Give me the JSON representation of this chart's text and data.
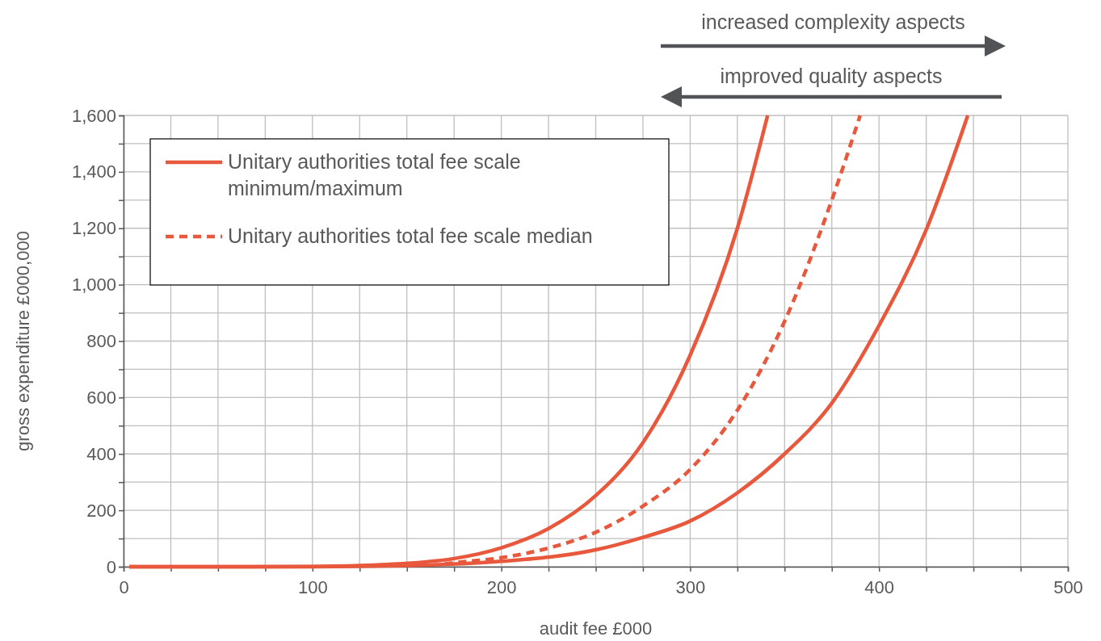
{
  "chart_data": {
    "type": "line",
    "xlabel": "audit fee £000",
    "ylabel": "gross expenditure £000,000",
    "annotations": [
      "increased complexity aspects",
      "improved quality aspects"
    ],
    "xlim": [
      0,
      500
    ],
    "ylim": [
      0,
      1600
    ],
    "xticks": [
      0,
      {
        "value": 25,
        "label": null
      },
      100,
      {
        "value": 50,
        "label": null
      },
      {
        "value": 75,
        "label": null
      },
      {
        "value": 125,
        "label": null
      },
      {
        "value": 150,
        "label": null
      },
      {
        "value": 175,
        "label": null
      },
      200,
      {
        "value": 225,
        "label": null
      },
      {
        "value": 250,
        "label": null
      },
      {
        "value": 275,
        "label": null
      },
      300,
      {
        "value": 325,
        "label": null
      },
      {
        "value": 350,
        "label": null
      },
      {
        "value": 375,
        "label": null
      },
      400,
      {
        "value": 425,
        "label": null
      },
      {
        "value": 450,
        "label": null
      },
      {
        "value": 475,
        "label": null
      },
      500
    ],
    "yticks": [
      0,
      {
        "value": 100,
        "label": null
      },
      200,
      {
        "value": 300,
        "label": null
      },
      400,
      {
        "value": 500,
        "label": null
      },
      600,
      {
        "value": 700,
        "label": null
      },
      800,
      {
        "value": 900,
        "label": null
      },
      {
        "value": 1000,
        "label": "1,000"
      },
      {
        "value": 1100,
        "label": null
      },
      {
        "value": 1200,
        "label": "1,200"
      },
      {
        "value": 1300,
        "label": null
      },
      {
        "value": 1400,
        "label": "1,400"
      },
      {
        "value": 1500,
        "label": null
      },
      {
        "value": 1600,
        "label": "1,600"
      }
    ],
    "grid": true,
    "legend": "top left",
    "marker": "none",
    "series": [
      {
        "name": "Unitary authorities total fee scale minimum/maximum",
        "color": "#e8583d",
        "line_style": "solid",
        "x": [
          3,
          50,
          100,
          125,
          150,
          175,
          200,
          225,
          250,
          275,
          300,
          325,
          341
        ],
        "values": [
          0,
          0,
          1,
          4,
          12,
          29,
          67,
          135,
          252,
          440,
          750,
          1200,
          1600
        ]
      },
      {
        "color": "#e8583d",
        "line_style": "solid",
        "x": [
          3,
          100,
          150,
          200,
          250,
          275,
          300,
          325,
          350,
          375,
          400,
          425,
          447
        ],
        "values": [
          0,
          0,
          4,
          19,
          60,
          104,
          162,
          262,
          400,
          580,
          855,
          1195,
          1600
        ]
      },
      {
        "name": "Unitary authorities total fee scale median",
        "color": "#e8583d",
        "line_style": "dashed",
        "x": [
          170,
          175,
          200,
          225,
          250,
          275,
          300,
          325,
          350,
          375,
          390
        ],
        "values": [
          10,
          14,
          32,
          66,
          122,
          215,
          345,
          555,
          870,
          1300,
          1600
        ]
      }
    ]
  }
}
